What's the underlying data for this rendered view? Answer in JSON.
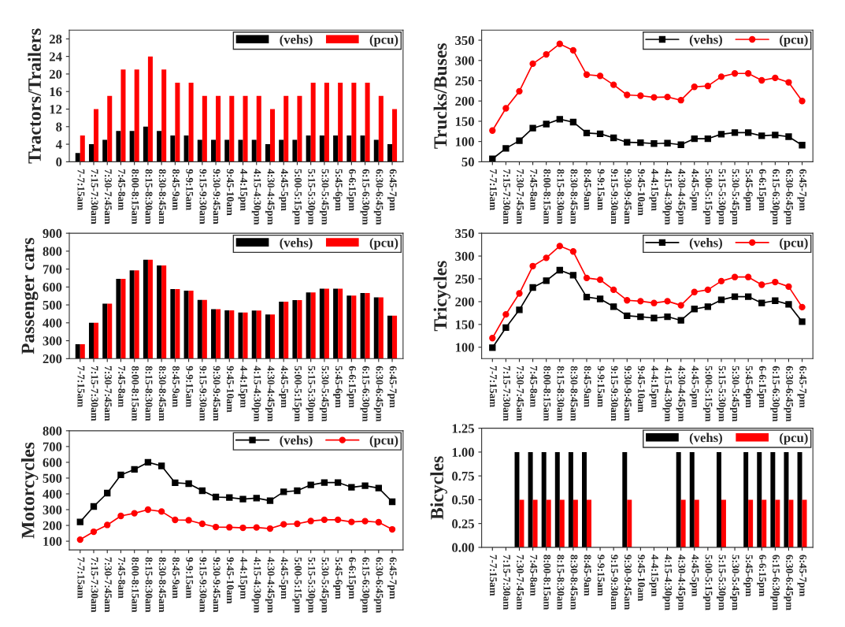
{
  "chart_data": [
    {
      "type": "bar",
      "ylabel": "Tractors/Trailers",
      "categories": [
        "7-7:15am",
        "7:15-7:30am",
        "7:30-7:45am",
        "7:45-8am",
        "8:00-8:15am",
        "8:15-8:30am",
        "8:30-8:45am",
        "8:45-9am",
        "9-9:15am",
        "9:15-9:30am",
        "9:30-9:45am",
        "9:45-10am",
        "4-4:15pm",
        "4:15-4:30pm",
        "4:30-4:45pm",
        "4:45-5pm",
        "5:00-5:15pm",
        "5:15-5:30pm",
        "5:30-5:45pm",
        "5:45-6pm",
        "6-6:15pm",
        "6:15-6:30pm",
        "6:30-6:45pm",
        "6:45-7pm"
      ],
      "series": [
        {
          "name": "(vehs)",
          "color": "#000000",
          "values": [
            2,
            4,
            5,
            7,
            7,
            8,
            7,
            6,
            6,
            5,
            5,
            5,
            5,
            5,
            4,
            5,
            5,
            6,
            6,
            6,
            6,
            6,
            5,
            4
          ]
        },
        {
          "name": "(pcu)",
          "color": "#ff0000",
          "values": [
            6,
            12,
            15,
            21,
            21,
            24,
            21,
            18,
            18,
            15,
            15,
            15,
            15,
            15,
            12,
            15,
            15,
            18,
            18,
            18,
            18,
            18,
            15,
            12
          ]
        }
      ],
      "ylim": [
        0,
        30
      ],
      "yticks": [
        0,
        4,
        8,
        12,
        16,
        20,
        24,
        28
      ],
      "legend": "top right",
      "grid": false
    },
    {
      "type": "line",
      "ylabel": "Trucks/Buses",
      "categories": [
        "7-7:15am",
        "7:15-7:30am",
        "7:30-7:45am",
        "7:45-8am",
        "8:00-8:15am",
        "8:15-8:30am",
        "8:30-8:45am",
        "8:45-9am",
        "9-9:15am",
        "9:15-9:30am",
        "9:30-9:45am",
        "9:45-10am",
        "4-4:15pm",
        "4:15-4:30pm",
        "4:30-4:45pm",
        "4:45-5pm",
        "5:00-5:15pm",
        "5:15-5:30pm",
        "5:30-5:45pm",
        "5:45-6pm",
        "6-6:15pm",
        "6:15-6:30pm",
        "6:30-6:45pm",
        "6:45-7pm"
      ],
      "series": [
        {
          "name": "(vehs)",
          "color": "#000000",
          "marker": "square",
          "values": [
            57,
            83,
            102,
            133,
            143,
            155,
            148,
            121,
            119,
            109,
            98,
            97,
            95,
            96,
            92,
            107,
            107,
            118,
            122,
            122,
            114,
            116,
            112,
            91
          ]
        },
        {
          "name": "(pcu)",
          "color": "#ff0000",
          "marker": "circle",
          "values": [
            127,
            182,
            224,
            292,
            315,
            341,
            325,
            265,
            262,
            240,
            215,
            213,
            209,
            210,
            202,
            235,
            237,
            260,
            268,
            268,
            251,
            257,
            246,
            200
          ]
        }
      ],
      "ylim": [
        50,
        375
      ],
      "yticks": [
        50,
        100,
        150,
        200,
        250,
        300,
        350
      ],
      "legend": "top right",
      "grid": false
    },
    {
      "type": "bar",
      "ylabel": "Passenger cars",
      "categories": [
        "7-7:15am",
        "7:15-7:30am",
        "7:30-7:45am",
        "7:45-8am",
        "8:00-8:15am",
        "8:15-8:30am",
        "8:30-8:45am",
        "8:45-9am",
        "9-9:15am",
        "9:15-9:30am",
        "9:30-9:45am",
        "9:45-10am",
        "4-4:15pm",
        "4:15-4:30pm",
        "4:30-4:45pm",
        "4:45-5pm",
        "5:00-5:15pm",
        "5:15-5:30pm",
        "5:30-5:45pm",
        "5:45-6pm",
        "6-6:15pm",
        "6:15-6:30pm",
        "6:30-6:45pm",
        "6:45-7pm"
      ],
      "series": [
        {
          "name": "(vehs)",
          "color": "#000000",
          "values": [
            280,
            400,
            507,
            645,
            693,
            752,
            720,
            588,
            580,
            528,
            476,
            470,
            458,
            468,
            446,
            518,
            527,
            570,
            591,
            591,
            552,
            566,
            542,
            440
          ]
        },
        {
          "name": "(pcu)",
          "color": "#ff0000",
          "values": [
            280,
            400,
            507,
            645,
            693,
            752,
            720,
            588,
            580,
            528,
            476,
            470,
            458,
            468,
            446,
            518,
            527,
            570,
            591,
            591,
            552,
            566,
            542,
            440
          ]
        }
      ],
      "ylim": [
        200,
        900
      ],
      "yticks": [
        200,
        300,
        400,
        500,
        600,
        700,
        800,
        900
      ],
      "legend": "top right",
      "grid": false
    },
    {
      "type": "line",
      "ylabel": "Tricycles",
      "categories": [
        "7-7:15am",
        "7:15-7:30am",
        "7:30-7:45am",
        "7:45-8am",
        "8:00-8:15am",
        "8:15-8:30am",
        "8:30-8:45am",
        "8:45-9am",
        "9-9:15am",
        "9:15-9:30am",
        "9:30-9:45am",
        "9:45-10am",
        "4-4:15pm",
        "4:15-4:30pm",
        "4:30-4:45pm",
        "4:45-5pm",
        "5:00-5:15pm",
        "5:15-5:30pm",
        "5:30-5:45pm",
        "5:45-6pm",
        "6-6:15pm",
        "6:15-6:30pm",
        "6:30-6:45pm",
        "6:45-7pm"
      ],
      "series": [
        {
          "name": "(vehs)",
          "color": "#000000",
          "marker": "square",
          "values": [
            99,
            143,
            182,
            231,
            246,
            269,
            258,
            210,
            206,
            189,
            169,
            167,
            164,
            167,
            159,
            184,
            189,
            204,
            211,
            211,
            197,
            202,
            194,
            156
          ]
        },
        {
          "name": "(pcu)",
          "color": "#ff0000",
          "marker": "circle",
          "values": [
            120,
            172,
            218,
            278,
            296,
            322,
            310,
            252,
            248,
            226,
            203,
            201,
            197,
            201,
            192,
            221,
            226,
            245,
            254,
            254,
            237,
            243,
            233,
            188
          ]
        }
      ],
      "ylim": [
        75,
        350
      ],
      "yticks": [
        100,
        150,
        200,
        250,
        300,
        350
      ],
      "legend": "top right",
      "grid": false
    },
    {
      "type": "line",
      "ylabel": "Motorcycles",
      "categories": [
        "7-7:15am",
        "7:15-7:30am",
        "7:30-7:45am",
        "7:45-8am",
        "8:00-8:15am",
        "8:15-8:30am",
        "8:30-8:45am",
        "8:45-9am",
        "9-9:15am",
        "9:15-9:30am",
        "9:30-9:45am",
        "9:45-10am",
        "4-4:15pm",
        "4:15-4:30pm",
        "4:30-4:45pm",
        "4:45-5pm",
        "5:00-5:15pm",
        "5:15-5:30pm",
        "5:30-5:45pm",
        "5:45-6pm",
        "6-6:15pm",
        "6:15-6:30pm",
        "6:30-6:45pm",
        "6:45-7pm"
      ],
      "series": [
        {
          "name": "(vehs)",
          "color": "#000000",
          "marker": "square",
          "values": [
            222,
            320,
            405,
            520,
            555,
            600,
            577,
            470,
            465,
            420,
            380,
            377,
            367,
            373,
            357,
            413,
            420,
            457,
            472,
            472,
            442,
            452,
            437,
            350
          ]
        },
        {
          "name": "(pcu)",
          "color": "#ff0000",
          "marker": "circle",
          "values": [
            110,
            160,
            203,
            260,
            277,
            300,
            288,
            235,
            233,
            210,
            190,
            188,
            185,
            187,
            180,
            207,
            210,
            228,
            236,
            236,
            222,
            227,
            220,
            175
          ]
        }
      ],
      "ylim": [
        45,
        800
      ],
      "yticks": [
        100,
        200,
        300,
        400,
        500,
        600,
        700,
        800
      ],
      "legend": "top right",
      "grid": false
    },
    {
      "type": "bar",
      "ylabel": "Bicycles",
      "categories": [
        "7-7:15am",
        "7:15-7:30am",
        "7:30-7:45am",
        "7:45-8am",
        "8:00-8:15am",
        "8:15-8:30am",
        "8:30-8:45am",
        "8:45-9am",
        "9-9:15am",
        "9:15-9:30am",
        "9:30-9:45am",
        "9:45-10am",
        "4-4:15pm",
        "4:15-4:30pm",
        "4:30-4:45pm",
        "4:45-5pm",
        "5:00-5:15pm",
        "5:15-5:30pm",
        "5:30-5:45pm",
        "5:45-6pm",
        "6-6:15pm",
        "6:15-6:30pm",
        "6:30-6:45pm",
        "6:45-7pm"
      ],
      "series": [
        {
          "name": "(vehs)",
          "color": "#000000",
          "values": [
            0,
            0,
            1,
            1,
            1,
            1,
            1,
            1,
            0,
            0,
            1,
            0,
            0,
            0,
            1,
            1,
            0,
            1,
            0,
            1,
            1,
            1,
            1,
            1
          ]
        },
        {
          "name": "(pcu)",
          "color": "#ff0000",
          "values": [
            0,
            0,
            0.5,
            0.5,
            0.5,
            0.5,
            0.5,
            0.5,
            0,
            0,
            0.5,
            0,
            0,
            0,
            0.5,
            0.5,
            0,
            0.5,
            0,
            0.5,
            0.5,
            0.5,
            0.5,
            0.5
          ]
        }
      ],
      "ylim": [
        0,
        1.25
      ],
      "yticks": [
        {
          "value": 0,
          "label": "0.00"
        },
        {
          "value": 0.25,
          "label": "0.25"
        },
        {
          "value": 0.5,
          "label": "0.50"
        },
        {
          "value": 0.75,
          "label": "0.75"
        },
        {
          "value": 1,
          "label": "1.00"
        },
        {
          "value": 1.25,
          "label": "1.25"
        }
      ],
      "legend": "top right",
      "grid": false
    }
  ]
}
